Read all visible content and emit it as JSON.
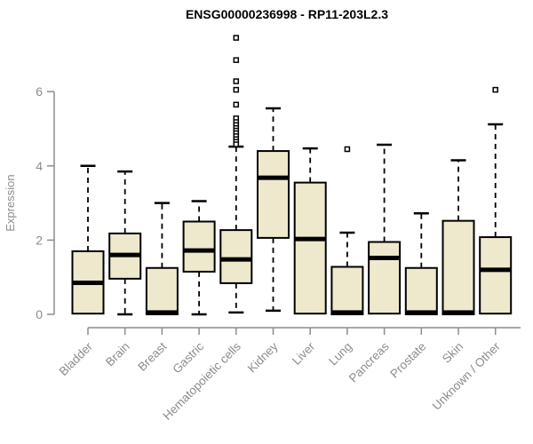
{
  "chart_data": {
    "type": "boxplot",
    "title": "ENSG00000236998 - RP11-203L2.3",
    "ylabel": "Expression",
    "xlabel": "",
    "yticks": [
      0,
      2,
      4,
      6
    ],
    "ylim": [
      0,
      7.6
    ],
    "grid": false,
    "legend": "none",
    "categories": [
      "Bladder",
      "Brain",
      "Breast",
      "Gastric",
      "Hematopoietic cells",
      "Kidney",
      "Liver",
      "Lung",
      "Pancreas",
      "Prostate",
      "Skin",
      "Unknown / Other"
    ],
    "series": [
      {
        "name": "Bladder",
        "low": 0,
        "q1": 0.02,
        "median": 0.85,
        "q3": 1.7,
        "high": 4.0,
        "outliers": []
      },
      {
        "name": "Brain",
        "low": 0,
        "q1": 0.96,
        "median": 1.6,
        "q3": 2.18,
        "high": 3.85,
        "outliers": []
      },
      {
        "name": "Breast",
        "low": 0,
        "q1": 0.0,
        "median": 0.05,
        "q3": 1.25,
        "high": 3.0,
        "outliers": []
      },
      {
        "name": "Gastric",
        "low": 0,
        "q1": 1.15,
        "median": 1.72,
        "q3": 2.5,
        "high": 3.05,
        "outliers": []
      },
      {
        "name": "Hematopoietic cells",
        "low": 0.05,
        "q1": 0.84,
        "median": 1.48,
        "q3": 2.27,
        "high": 4.52,
        "outliers": [
          7.45,
          6.85,
          6.28,
          6.05,
          5.65,
          5.28,
          5.18,
          5.1,
          5.02,
          4.95,
          4.88,
          4.8,
          4.72,
          4.65,
          4.58
        ]
      },
      {
        "name": "Kidney",
        "low": 0.1,
        "q1": 2.06,
        "median": 3.68,
        "q3": 4.4,
        "high": 5.55,
        "outliers": []
      },
      {
        "name": "Liver",
        "low": 0,
        "q1": 0.02,
        "median": 2.03,
        "q3": 3.55,
        "high": 4.47,
        "outliers": []
      },
      {
        "name": "Lung",
        "low": 0,
        "q1": 0.0,
        "median": 0.05,
        "q3": 1.28,
        "high": 2.2,
        "outliers": [
          4.45
        ]
      },
      {
        "name": "Pancreas",
        "low": 0,
        "q1": 0.02,
        "median": 1.52,
        "q3": 1.95,
        "high": 4.57,
        "outliers": []
      },
      {
        "name": "Prostate",
        "low": 0,
        "q1": 0.0,
        "median": 0.05,
        "q3": 1.25,
        "high": 2.72,
        "outliers": []
      },
      {
        "name": "Skin",
        "low": 0,
        "q1": 0.0,
        "median": 0.05,
        "q3": 2.52,
        "high": 4.15,
        "outliers": []
      },
      {
        "name": "Unknown / Other",
        "low": 0,
        "q1": 0.02,
        "median": 1.2,
        "q3": 2.08,
        "high": 5.12,
        "outliers": [
          6.05
        ]
      }
    ]
  },
  "style": {
    "box_fill": "#EEE8CD",
    "box_stroke": "#000000",
    "median_color": "#000000",
    "whisker_color": "#000000",
    "outlier_fill": "#ffffff",
    "outlier_stroke": "#000000",
    "axis_color": "#8c8c8c",
    "tick_label_color": "#8c8c8c",
    "title_color": "#000000"
  }
}
